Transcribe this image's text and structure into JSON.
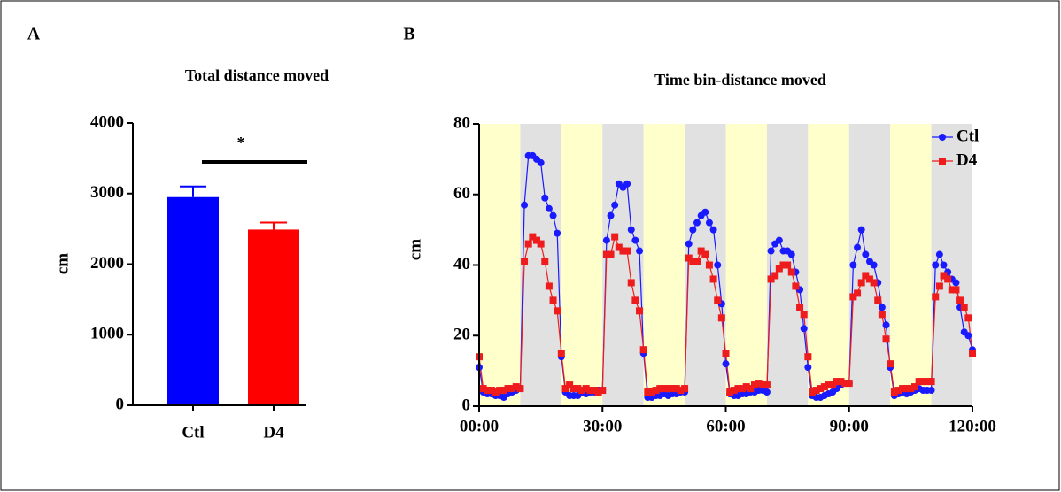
{
  "chart_data": [
    {
      "type": "bar",
      "panel_label": "A",
      "title": "Total distance moved",
      "y_label": "cm",
      "categories": [
        "Ctl",
        "D4"
      ],
      "values": [
        2950,
        2490
      ],
      "errors": [
        150,
        100
      ],
      "colors": [
        "#0000ff",
        "#ff0000"
      ],
      "annotation": "*",
      "ylim": [
        0,
        4000
      ],
      "yticks": [
        0,
        1000,
        2000,
        3000,
        4000
      ]
    },
    {
      "type": "line",
      "panel_label": "B",
      "title": "Time bin-distance moved",
      "y_label": "cm",
      "x": [
        0,
        1,
        2,
        3,
        4,
        5,
        6,
        7,
        8,
        9,
        10,
        11,
        12,
        13,
        14,
        15,
        16,
        17,
        18,
        19,
        20,
        21,
        22,
        23,
        24,
        25,
        26,
        27,
        28,
        29,
        30,
        31,
        32,
        33,
        34,
        35,
        36,
        37,
        38,
        39,
        40,
        41,
        42,
        43,
        44,
        45,
        46,
        47,
        48,
        49,
        50,
        51,
        52,
        53,
        54,
        55,
        56,
        57,
        58,
        59,
        60,
        61,
        62,
        63,
        64,
        65,
        66,
        67,
        68,
        69,
        70,
        71,
        72,
        73,
        74,
        75,
        76,
        77,
        78,
        79,
        80,
        81,
        82,
        83,
        84,
        85,
        86,
        87,
        88,
        89,
        90,
        91,
        92,
        93,
        94,
        95,
        96,
        97,
        98,
        99,
        100,
        101,
        102,
        103,
        104,
        105,
        106,
        107,
        108,
        109,
        110,
        111,
        112,
        113,
        114,
        115,
        116,
        117,
        118,
        119,
        120
      ],
      "series": [
        {
          "name": "Ctl",
          "color": "#1a1aff",
          "marker": "circle",
          "values": [
            11,
            4,
            3.5,
            3.5,
            3,
            3,
            2.5,
            3.5,
            4,
            4.5,
            5,
            57,
            71,
            71,
            70,
            69,
            59,
            56,
            54,
            49,
            14,
            4,
            3,
            3,
            3,
            4,
            3.5,
            4,
            4,
            4.5,
            4.5,
            47,
            54,
            57,
            63,
            62,
            63,
            50,
            47,
            44,
            15,
            2.5,
            2.5,
            3,
            3,
            3.5,
            3,
            3.5,
            3.5,
            4,
            4,
            46,
            50,
            52,
            54,
            55,
            52,
            50,
            40,
            29,
            12,
            3.5,
            3,
            3,
            3.5,
            3.5,
            4,
            4,
            4.5,
            4.5,
            4,
            44,
            46,
            47,
            44,
            44,
            43,
            38,
            33,
            22,
            11,
            3,
            2.5,
            2.5,
            3,
            3.5,
            4,
            5,
            6,
            6.5,
            6.5,
            40,
            45,
            50,
            43,
            41,
            40,
            35,
            28,
            23,
            11,
            3,
            3.5,
            4,
            3.5,
            4,
            4.5,
            5,
            4.5,
            4.5,
            4.5,
            40,
            43,
            40,
            38,
            36,
            35,
            28,
            21,
            20,
            16
          ]
        },
        {
          "name": "D4",
          "color": "#ee1c1c",
          "marker": "square",
          "values": [
            14,
            5,
            4.5,
            4.5,
            4,
            4.5,
            4.5,
            5,
            5,
            5.5,
            5,
            41,
            46,
            48,
            47,
            46,
            41,
            34,
            30,
            27,
            15,
            5,
            6,
            5,
            5,
            4.5,
            5,
            4.5,
            4.5,
            4,
            4.5,
            43,
            43,
            48,
            45,
            44,
            44,
            35,
            30,
            27,
            16,
            4,
            4,
            4.5,
            5,
            5,
            5,
            5,
            5,
            4.5,
            5,
            42,
            41,
            41,
            44,
            43,
            40,
            36,
            30,
            25,
            15,
            4,
            4.5,
            5,
            5,
            5.5,
            5,
            6,
            6.5,
            6,
            6,
            36,
            37,
            39,
            40,
            40,
            38,
            34,
            28,
            26,
            14,
            4,
            4.5,
            5,
            5.5,
            6,
            6,
            7,
            7,
            6.5,
            6.5,
            31,
            32,
            35,
            37,
            36,
            35,
            30,
            26,
            19,
            12,
            4,
            4.5,
            5,
            5,
            5,
            5.5,
            7,
            7,
            7,
            7,
            31,
            34,
            37,
            36,
            33,
            33,
            30,
            28,
            25,
            15
          ]
        }
      ],
      "band_colors": [
        "#ffffcc",
        "#e1e1e1"
      ],
      "xlim": [
        0,
        120
      ],
      "xticks": [
        {
          "value": 0,
          "label": "00:00"
        },
        {
          "value": 30,
          "label": "30:00"
        },
        {
          "value": 60,
          "label": "60:00"
        },
        {
          "value": 90,
          "label": "90:00"
        },
        {
          "value": 120,
          "label": "120:00"
        }
      ],
      "ylim": [
        0,
        80
      ],
      "yticks": [
        0,
        20,
        40,
        60,
        80
      ],
      "legend": "upper right"
    }
  ]
}
